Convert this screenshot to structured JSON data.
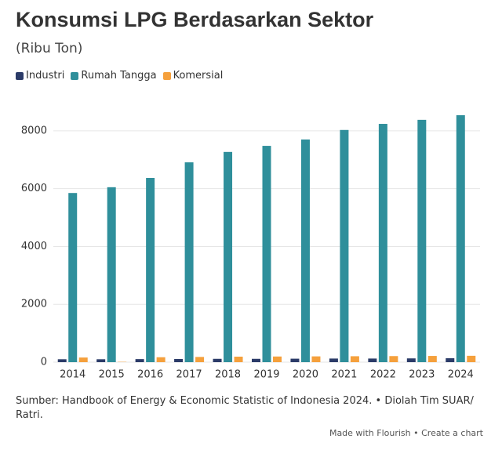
{
  "chart_data": {
    "type": "bar",
    "title": "Konsumsi LPG Berdasarkan Sektor",
    "subtitle": "(Ribu Ton)",
    "categories": [
      "2014",
      "2015",
      "2016",
      "2017",
      "2018",
      "2019",
      "2020",
      "2021",
      "2022",
      "2023",
      "2024"
    ],
    "series": [
      {
        "name": "Industri",
        "color": "#2b3b68",
        "values": [
          100,
          100,
          105,
          110,
          115,
          115,
          120,
          125,
          125,
          130,
          135
        ]
      },
      {
        "name": "Rumah Tangga",
        "color": "#2f8f9b",
        "values": [
          5850,
          6050,
          6370,
          6910,
          7270,
          7480,
          7700,
          8030,
          8240,
          8380,
          8540
        ]
      },
      {
        "name": "Komersial",
        "color": "#f5a03c",
        "values": [
          160,
          10,
          170,
          180,
          190,
          195,
          200,
          205,
          210,
          215,
          220
        ]
      }
    ],
    "ylim": [
      0,
      9000
    ],
    "yticks": [
      0,
      2000,
      4000,
      6000,
      8000
    ],
    "grid": true,
    "source": "Sumber: Handbook of Energy & Economic Statistic of Indonesia 2024. • Diolah Tim SUAR/ Ratri.",
    "credit": "Made with Flourish • Create a chart"
  }
}
